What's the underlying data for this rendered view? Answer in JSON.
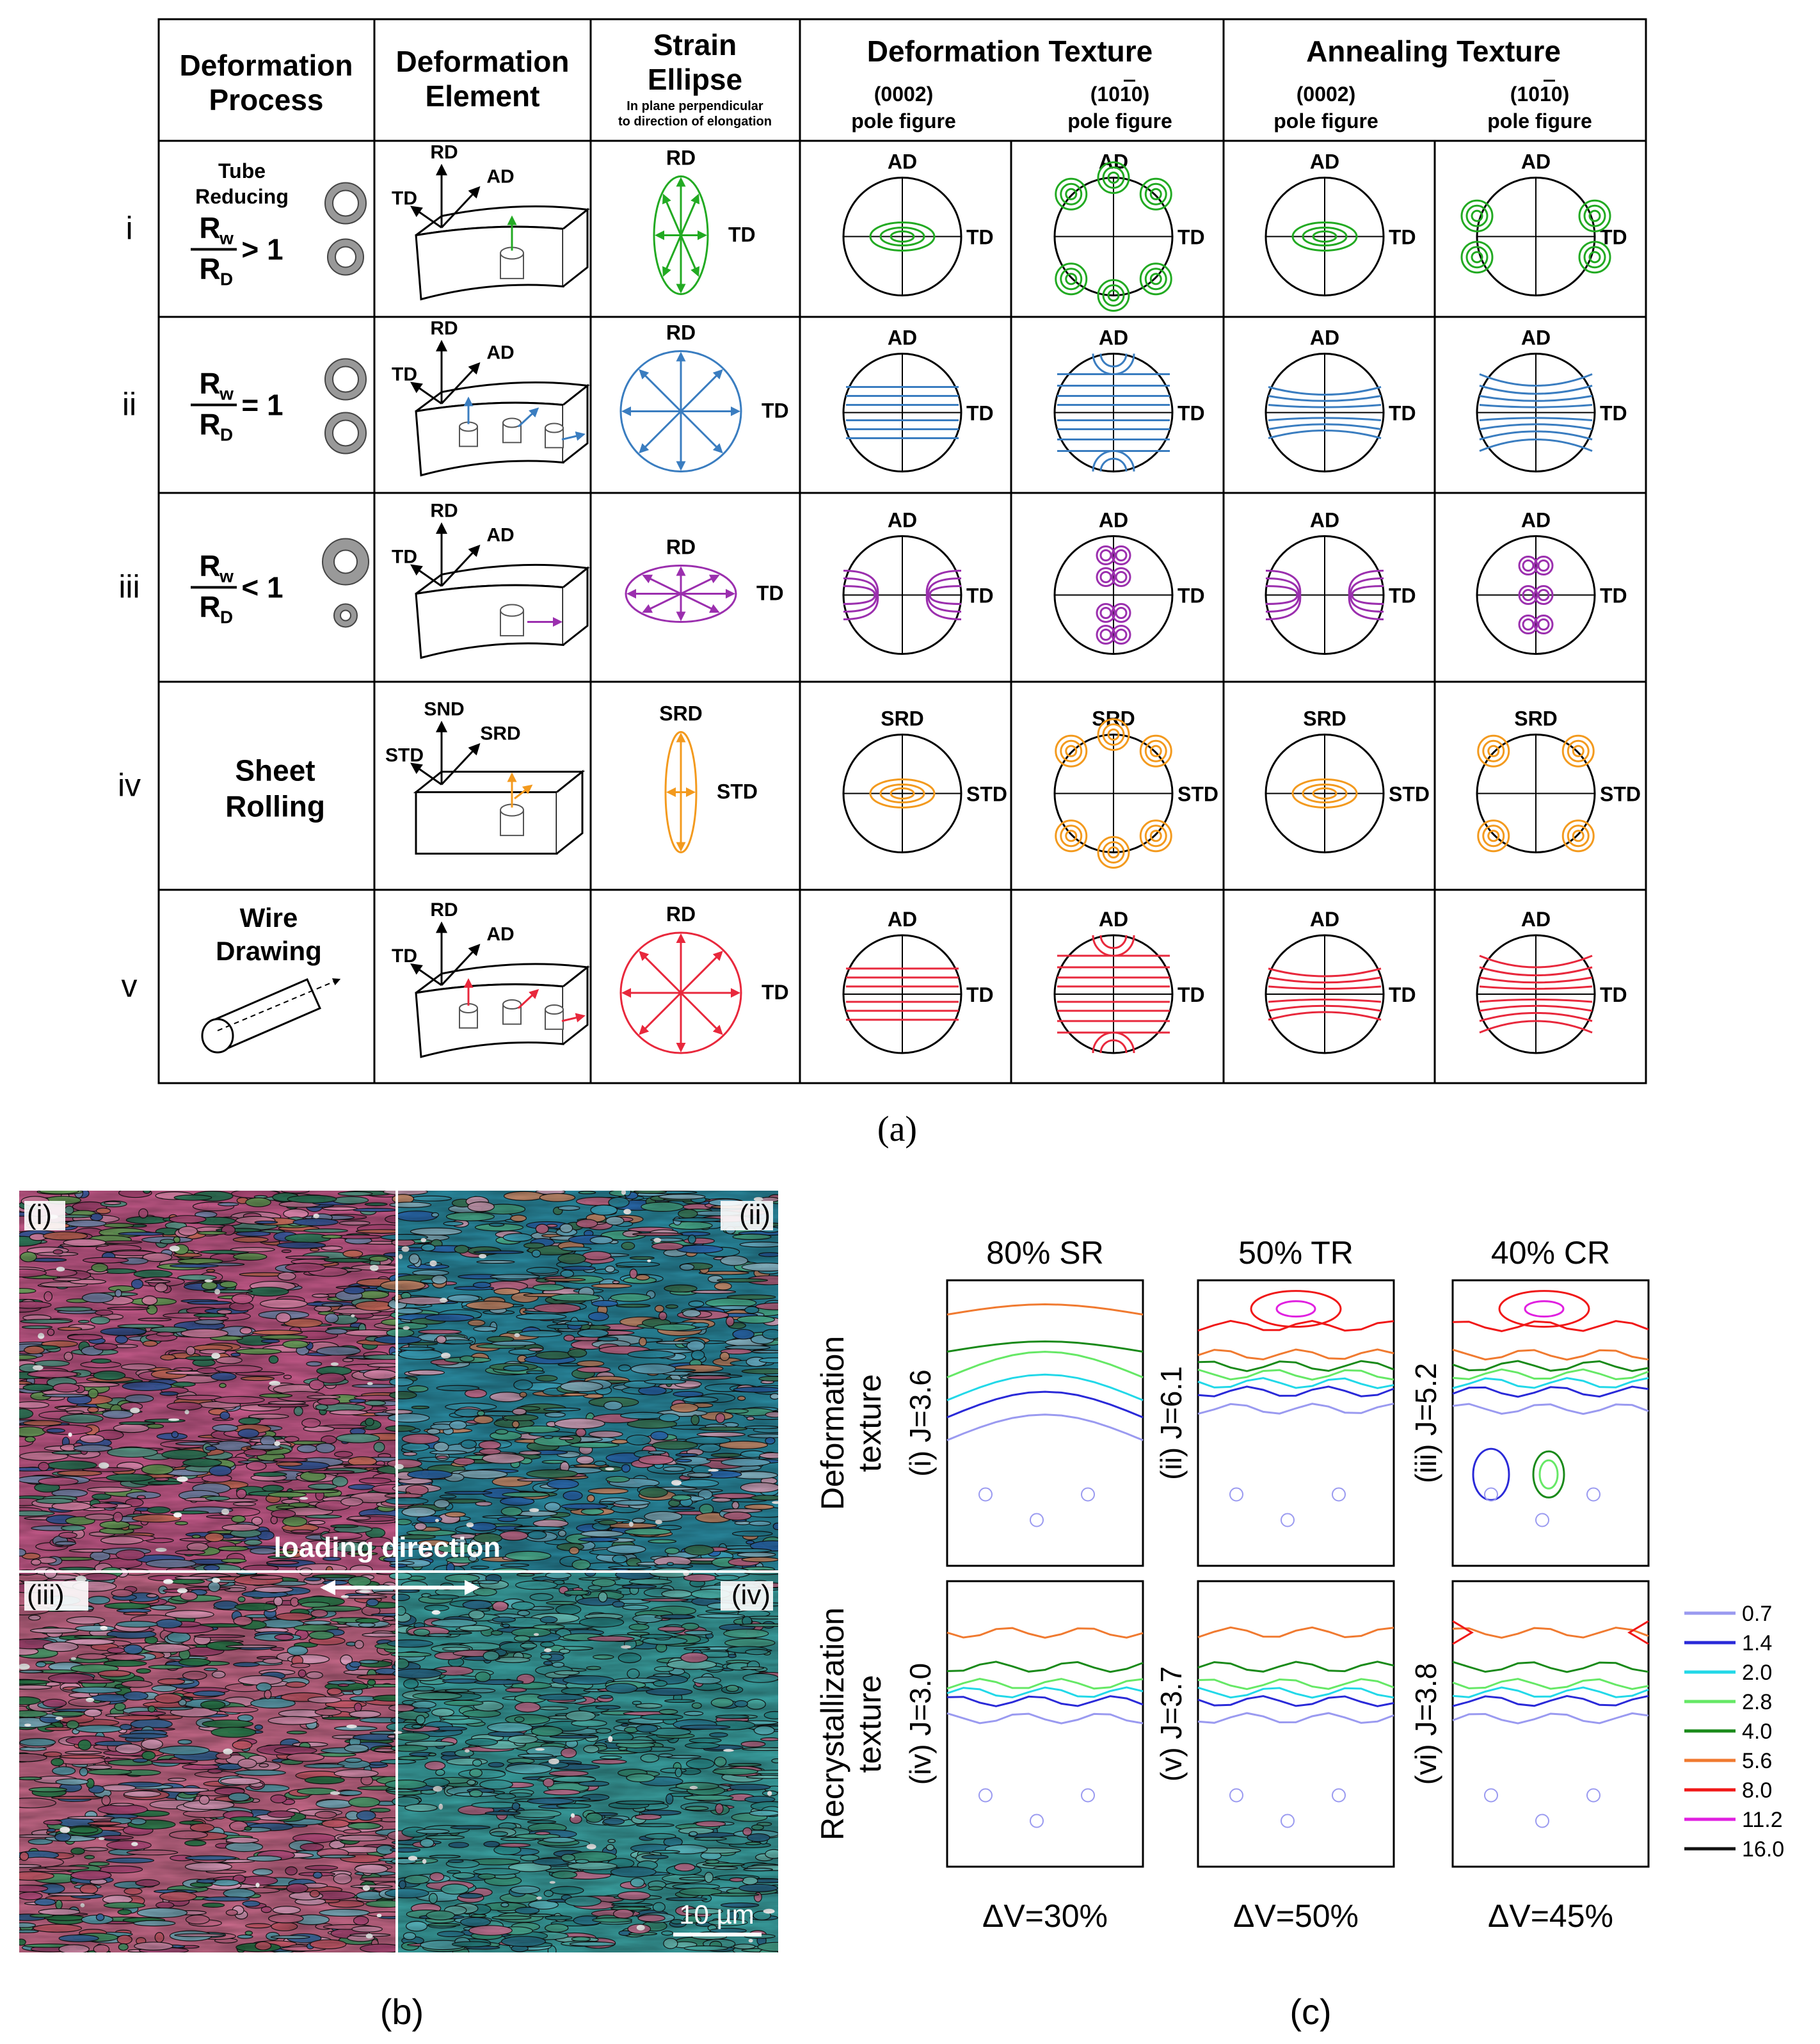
{
  "figure_a": {
    "caption": "(a)",
    "headers": {
      "process": [
        "Deformation",
        "Process"
      ],
      "element": [
        "Deformation",
        "Element"
      ],
      "ellipse": [
        "Strain",
        "Ellipse"
      ],
      "ellipse_note": [
        "In plane perpendicular",
        "to direction of elongation"
      ],
      "deformation_texture": "Deformation Texture",
      "annealing_texture": "Annealing Texture",
      "basal_pole": "(0002)",
      "prism_pole": "(1010)",
      "pole_figure": "pole figure"
    },
    "rows": [
      {
        "id": "i",
        "process_label": [
          "Tube",
          "Reducing"
        ],
        "ratio_symbol": ">",
        "ratio_value": "1",
        "colour": "#22aa22",
        "ellipse_rd": "RD",
        "ellipse_td": "TD",
        "elem_axes": [
          "RD",
          "AD",
          "TD"
        ],
        "pole_top": "AD",
        "pole_side": "TD"
      },
      {
        "id": "ii",
        "ratio_symbol": "=",
        "ratio_value": "1",
        "colour": "#3a7dc0",
        "ellipse_rd": "RD",
        "ellipse_td": "TD",
        "elem_axes": [
          "RD",
          "AD",
          "TD"
        ],
        "pole_top": "AD",
        "pole_side": "TD"
      },
      {
        "id": "iii",
        "ratio_symbol": "<",
        "ratio_value": "1",
        "colour": "#9b2fae",
        "ellipse_rd": "RD",
        "ellipse_td": "TD",
        "elem_axes": [
          "RD",
          "AD",
          "TD"
        ],
        "pole_top": "AD",
        "pole_side": "TD"
      },
      {
        "id": "iv",
        "process_label": [
          "Sheet",
          "Rolling"
        ],
        "colour": "#f39a1e",
        "ellipse_rd": "SRD",
        "ellipse_td": "STD",
        "elem_axes": [
          "SND",
          "SRD",
          "STD"
        ],
        "pole_top": "SRD",
        "pole_side": "STD"
      },
      {
        "id": "v",
        "process_label": [
          "Wire",
          "Drawing"
        ],
        "colour": "#e8283c",
        "ellipse_rd": "RD",
        "ellipse_td": "TD",
        "elem_axes": [
          "RD",
          "AD",
          "TD"
        ],
        "pole_top": "AD",
        "pole_side": "TD"
      }
    ],
    "ratio_letters": {
      "r": "R",
      "w": "w",
      "d": "D"
    }
  },
  "figure_b": {
    "caption": "(b)",
    "quadrant_labels": [
      "(i)",
      "(ii)",
      "(iii)",
      "(iv)"
    ],
    "loading_direction": "loading direction",
    "scale_bar": "10 µm"
  },
  "figure_c": {
    "caption": "(c)",
    "columns": [
      "80% SR",
      "50% TR",
      "40% CR"
    ],
    "row_labels": [
      [
        "Deformation",
        "texture"
      ],
      [
        "Recrystallization",
        "texture"
      ]
    ],
    "panel_labels": [
      [
        "(i) J=3.6",
        "(ii) J=6.1",
        "(iii) J=5.2"
      ],
      [
        "(iv) J=3.0",
        "(v) J=3.7",
        "(vi) J=3.8"
      ]
    ],
    "volume_fractions": [
      "ΔV=30%",
      "ΔV=50%",
      "ΔV=45%"
    ],
    "legend": [
      {
        "value": "0.7",
        "colour": "#9a9af0"
      },
      {
        "value": "1.4",
        "colour": "#2a2ad8"
      },
      {
        "value": "2.0",
        "colour": "#22d8e8"
      },
      {
        "value": "2.8",
        "colour": "#66e866"
      },
      {
        "value": "4.0",
        "colour": "#1a8a1a"
      },
      {
        "value": "5.6",
        "colour": "#f07a30"
      },
      {
        "value": "8.0",
        "colour": "#f01818"
      },
      {
        "value": "11.2",
        "colour": "#e020e0"
      },
      {
        "value": "16.0",
        "colour": "#111111"
      }
    ]
  }
}
